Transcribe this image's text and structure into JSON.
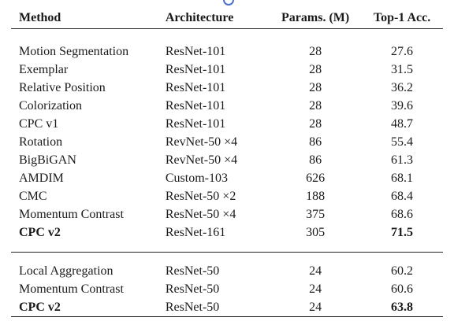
{
  "table": {
    "headers": [
      "Method",
      "Architecture",
      "Params. (M)",
      "Top-1 Acc."
    ],
    "group1": [
      {
        "method": "Motion Segmentation",
        "arch": "ResNet-101",
        "params": "28",
        "acc": "27.6"
      },
      {
        "method": "Exemplar",
        "arch": "ResNet-101",
        "params": "28",
        "acc": "31.5"
      },
      {
        "method": "Relative Position",
        "arch": "ResNet-101",
        "params": "28",
        "acc": "36.2"
      },
      {
        "method": "Colorization",
        "arch": "ResNet-101",
        "params": "28",
        "acc": "39.6"
      },
      {
        "method": "CPC v1",
        "arch": "ResNet-101",
        "params": "28",
        "acc": "48.7"
      },
      {
        "method": "Rotation",
        "arch": "RevNet-50 ×4",
        "params": "86",
        "acc": "55.4"
      },
      {
        "method": "BigBiGAN",
        "arch": "RevNet-50 ×4",
        "params": "86",
        "acc": "61.3"
      },
      {
        "method": "AMDIM",
        "arch": "Custom-103",
        "params": "626",
        "acc": "68.1"
      },
      {
        "method": "CMC",
        "arch": "ResNet-50 ×2",
        "params": "188",
        "acc": "68.4"
      },
      {
        "method": "Momentum Contrast",
        "arch": "ResNet-50 ×4",
        "params": "375",
        "acc": "68.6"
      },
      {
        "method": "CPC v2",
        "arch": "ResNet-161",
        "params": "305",
        "acc": "71.5",
        "bold": true
      }
    ],
    "group2": [
      {
        "method": "Local Aggregation",
        "arch": "ResNet-50",
        "params": "24",
        "acc": "60.2"
      },
      {
        "method": "Momentum Contrast",
        "arch": "ResNet-50",
        "params": "24",
        "acc": "60.6"
      },
      {
        "method": "CPC v2",
        "arch": "ResNet-50",
        "params": "24",
        "acc": "63.8",
        "bold": true
      }
    ]
  }
}
